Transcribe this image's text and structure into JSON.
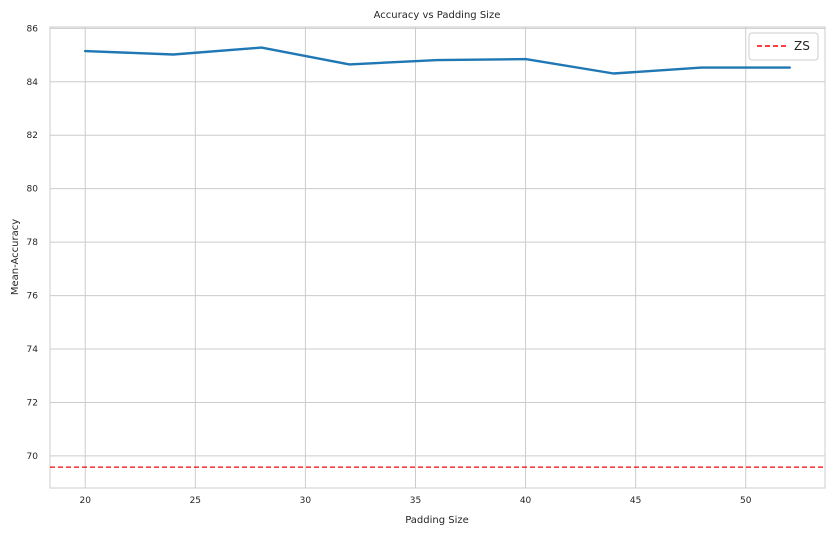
{
  "chart_data": {
    "type": "line",
    "title": "Accuracy vs Padding Size",
    "xlabel": "Padding Size",
    "ylabel": "Mean-Accuracy",
    "xlim": [
      18.4,
      53.6
    ],
    "ylim": [
      68.8,
      86.05
    ],
    "xticks": [
      20,
      25,
      30,
      35,
      40,
      45,
      50
    ],
    "yticks": [
      70,
      72,
      74,
      76,
      78,
      80,
      82,
      84,
      86
    ],
    "grid": true,
    "legend_position": "top-right",
    "series": [
      {
        "values_x": [
          20,
          24,
          28,
          32,
          36,
          40,
          44,
          48,
          52
        ],
        "values_y": [
          85.15,
          85.02,
          85.28,
          84.65,
          84.81,
          84.85,
          84.31,
          84.53,
          84.53
        ],
        "color": "#1f77b4",
        "style": "solid"
      }
    ],
    "reference_lines": [
      {
        "name": "ZS",
        "y": 69.58,
        "color": "#ff0000",
        "style": "dashed"
      }
    ]
  }
}
